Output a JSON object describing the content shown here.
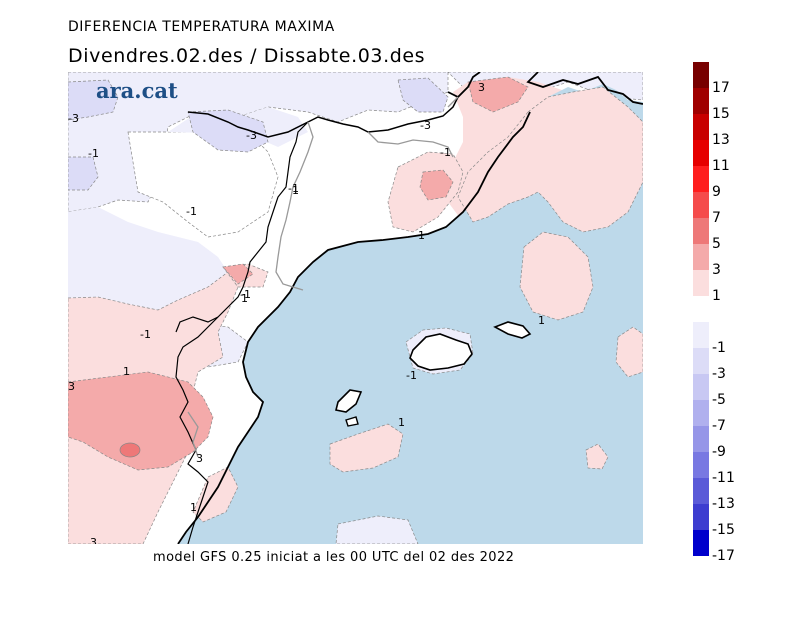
{
  "header": {
    "title": "DIFERENCIA TEMPERATURA MAXIMA",
    "subtitle": "Divendres.02.des / Dissabte.03.des"
  },
  "logo": {
    "text": "ara.cat",
    "color": "#1e4f86"
  },
  "footer": {
    "text": "model GFS 0.25 iniciat a les 00 UTC del 02 des 2022"
  },
  "map": {
    "sea_color": "#bdd9ea",
    "land_neutral_color": "#ffffff",
    "contour_labels": [
      "-3",
      "-3",
      "-3",
      "-1",
      "-1",
      "-1",
      "-1",
      "-1",
      "-1",
      "-1",
      "1",
      "1",
      "1",
      "1",
      "1",
      "1",
      "1",
      "3",
      "3",
      "3",
      "3"
    ]
  },
  "legend": {
    "warm": [
      {
        "label": "17",
        "color": "#780000"
      },
      {
        "label": "15",
        "color": "#a00000"
      },
      {
        "label": "13",
        "color": "#c80000"
      },
      {
        "label": "11",
        "color": "#e60000"
      },
      {
        "label": "9",
        "color": "#ff1e1e"
      },
      {
        "label": "7",
        "color": "#f54b4b"
      },
      {
        "label": "5",
        "color": "#ee7878"
      },
      {
        "label": "3",
        "color": "#f4aaaa"
      },
      {
        "label": "1",
        "color": "#fbdede"
      }
    ],
    "cool": [
      {
        "label": "-1",
        "color": "#eeeefb"
      },
      {
        "label": "-3",
        "color": "#dcdcf7"
      },
      {
        "label": "-5",
        "color": "#c8c8f3"
      },
      {
        "label": "-7",
        "color": "#b0b0ee"
      },
      {
        "label": "-9",
        "color": "#9696e8"
      },
      {
        "label": "-11",
        "color": "#7878e2"
      },
      {
        "label": "-13",
        "color": "#5a5ad8"
      },
      {
        "label": "-15",
        "color": "#3c3cd0"
      },
      {
        "label": "-17",
        "color": "#0000cc"
      }
    ]
  }
}
